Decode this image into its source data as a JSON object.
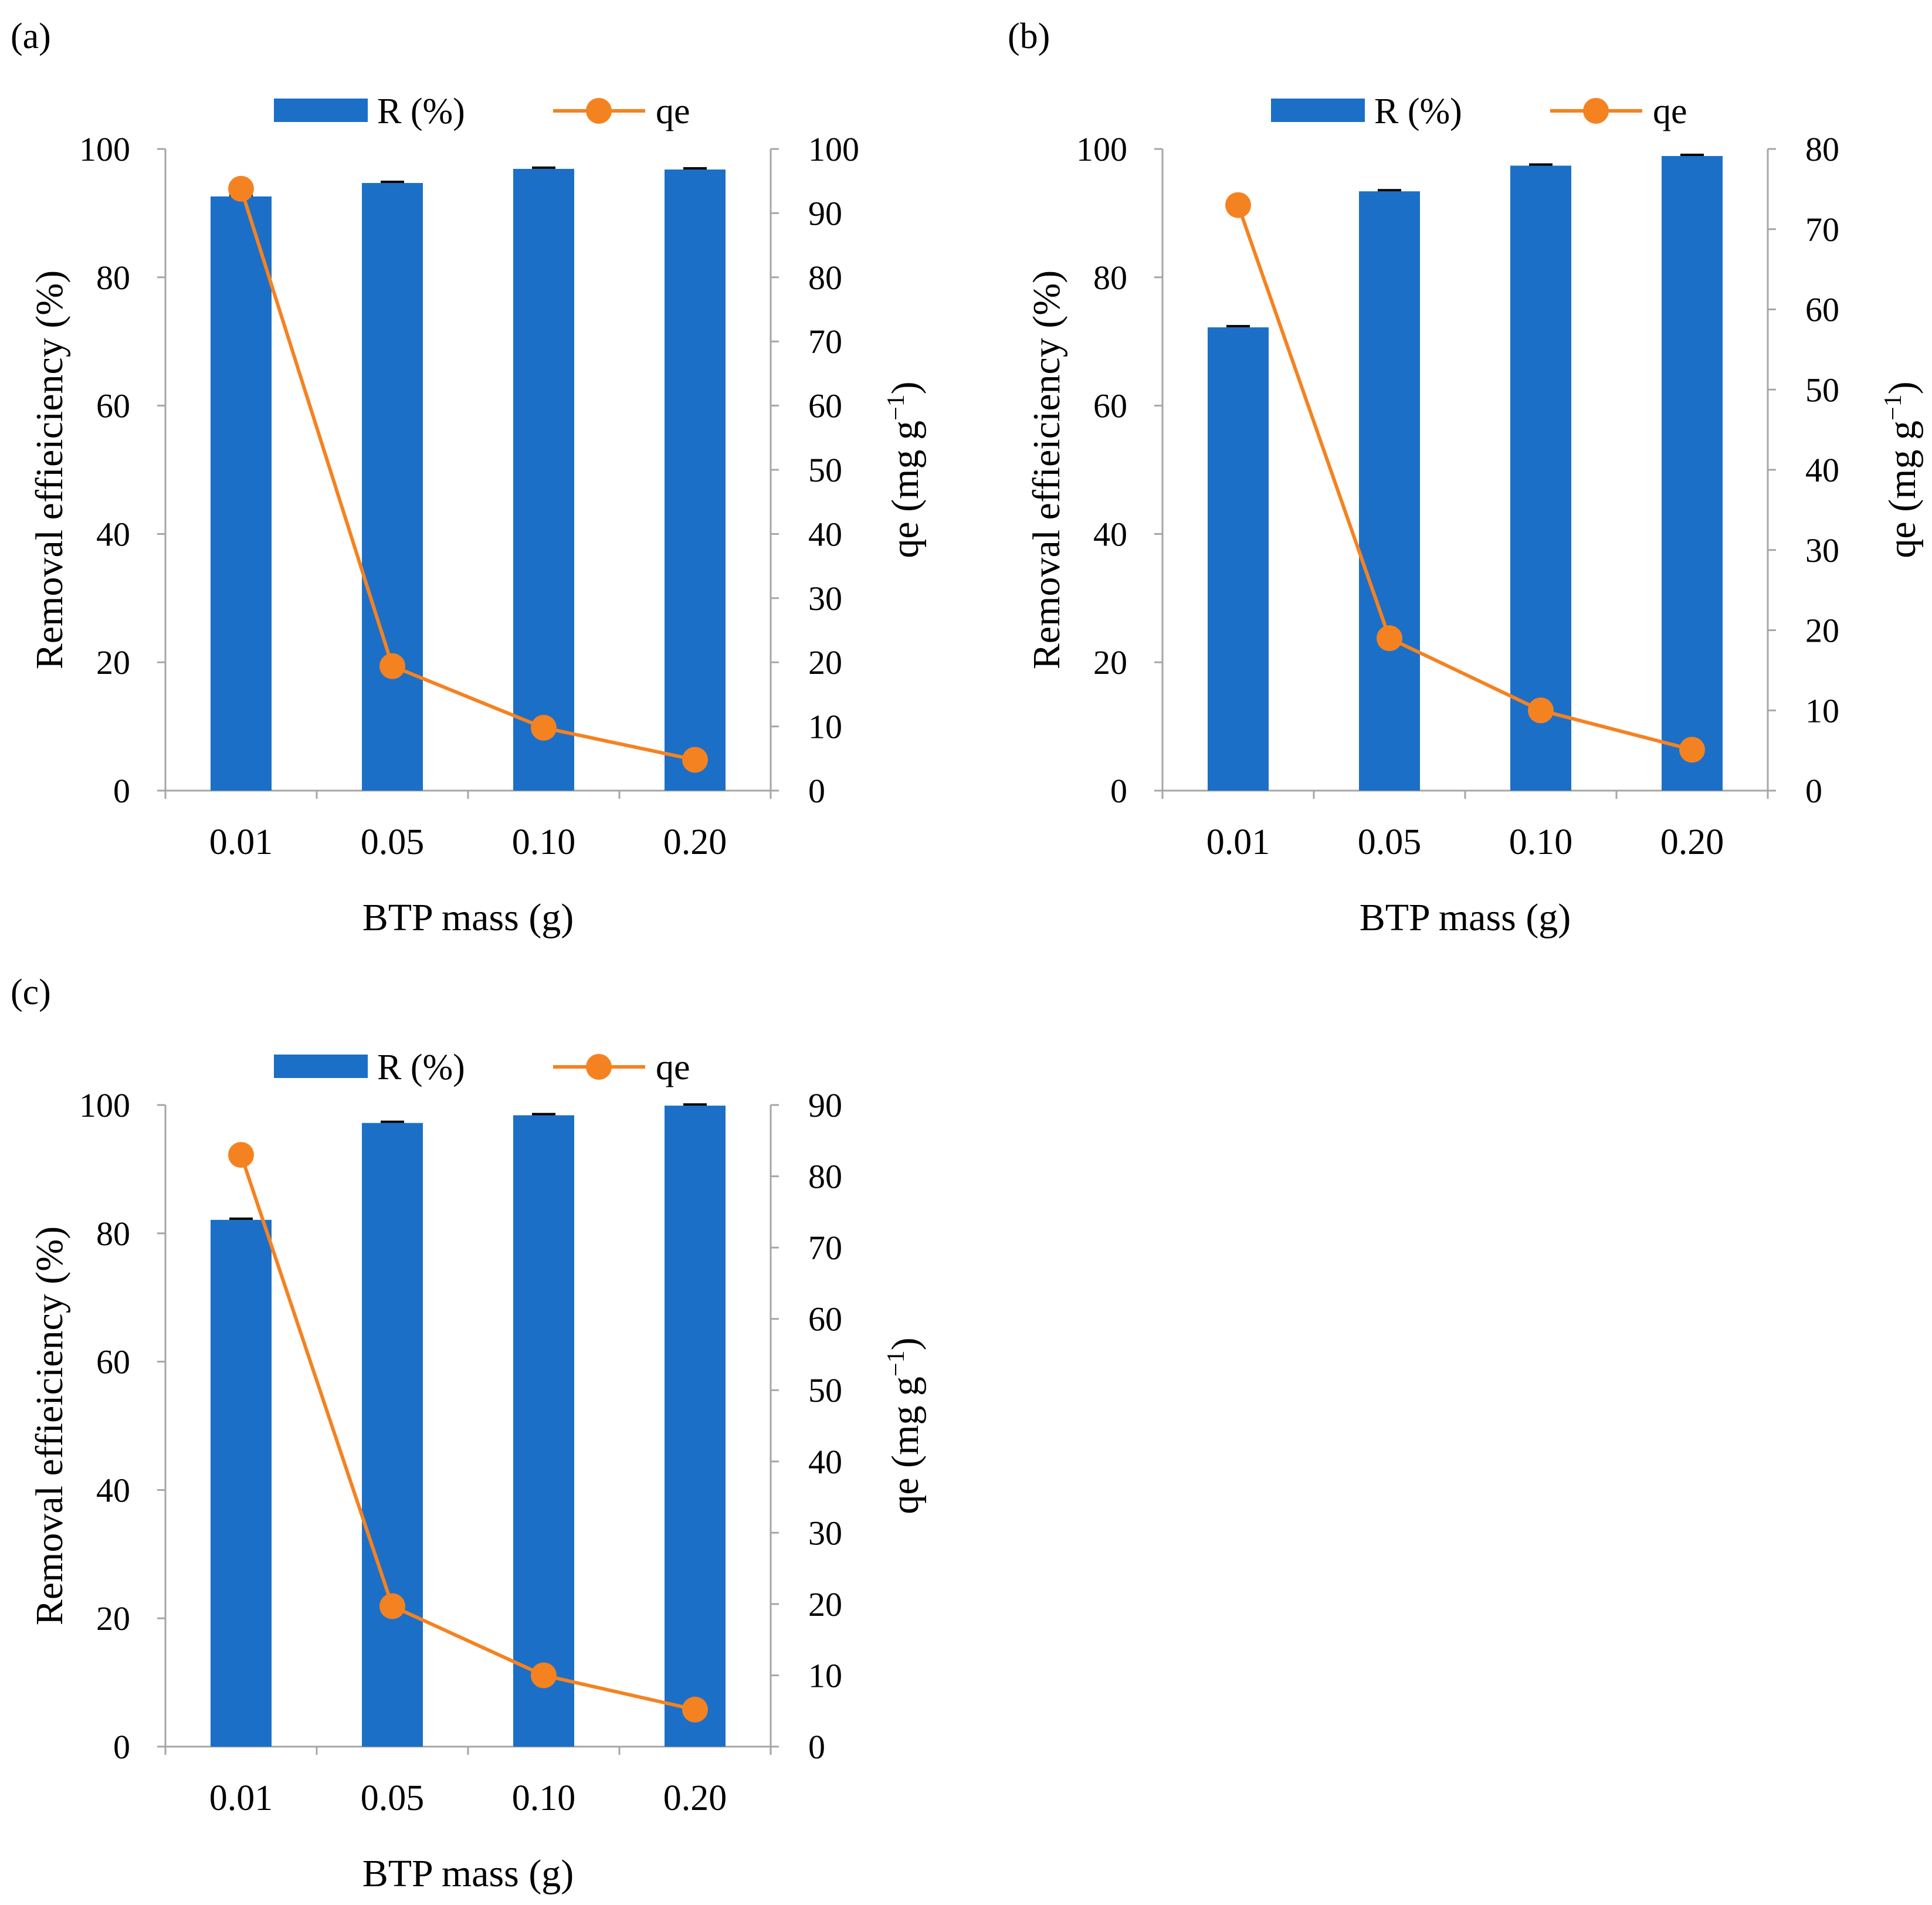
{
  "colors": {
    "bar": "#1C6FC6",
    "line": "#F58220",
    "axis": "#a6a6a6",
    "error": "#000000"
  },
  "chart_data": [
    {
      "type": "bar",
      "panel_label": "(a)",
      "categories": [
        "0.01",
        "0.05",
        "0.10",
        "0.20"
      ],
      "xlabel": "BTP mass (g)",
      "ylabel": "Removal effieiciency (%)",
      "y2label_main": "qe (mg g",
      "y2label_sup": "−1",
      "y2label_end": ")",
      "ylim": [
        0,
        100
      ],
      "yticks": [
        0,
        20,
        40,
        60,
        80,
        100
      ],
      "y2lim": [
        0,
        100
      ],
      "y2ticks": [
        0,
        10,
        20,
        30,
        40,
        50,
        60,
        70,
        80,
        90,
        100
      ],
      "legend": {
        "bar": "R (%)",
        "line": "qe"
      },
      "series": [
        {
          "name": "R (%)",
          "kind": "bar",
          "axis": "left",
          "values": [
            92.6,
            94.7,
            96.9,
            96.8
          ]
        },
        {
          "name": "qe",
          "kind": "line",
          "axis": "right",
          "values": [
            93.8,
            19.4,
            9.8,
            4.8
          ]
        }
      ]
    },
    {
      "type": "bar",
      "panel_label": "(b)",
      "categories": [
        "0.01",
        "0.05",
        "0.10",
        "0.20"
      ],
      "xlabel": "BTP mass (g)",
      "ylabel": "Removal effieiciency (%)",
      "y2label_main": "qe (mg g",
      "y2label_sup": "−1",
      "y2label_end": ")",
      "ylim": [
        0,
        100
      ],
      "yticks": [
        0,
        20,
        40,
        60,
        80,
        100
      ],
      "y2lim": [
        0,
        80
      ],
      "y2ticks": [
        0,
        10,
        20,
        30,
        40,
        50,
        60,
        70,
        80
      ],
      "legend": {
        "bar": "R (%)",
        "line": "qe"
      },
      "series": [
        {
          "name": "R (%)",
          "kind": "bar",
          "axis": "left",
          "values": [
            72.2,
            93.4,
            97.4,
            98.9
          ]
        },
        {
          "name": "qe",
          "kind": "line",
          "axis": "right",
          "values": [
            73.0,
            19.0,
            10.0,
            5.1
          ]
        }
      ]
    },
    {
      "type": "bar",
      "panel_label": "(c)",
      "categories": [
        "0.01",
        "0.05",
        "0.10",
        "0.20"
      ],
      "xlabel": "BTP mass (g)",
      "ylabel": "Removal effieiciency (%)",
      "y2label_main": "qe (mg g",
      "y2label_sup": "−1",
      "y2label_end": ")",
      "ylim": [
        0,
        100
      ],
      "yticks": [
        0,
        20,
        40,
        60,
        80,
        100
      ],
      "y2lim": [
        0,
        90
      ],
      "y2ticks": [
        0,
        10,
        20,
        30,
        40,
        50,
        60,
        70,
        80,
        90
      ],
      "legend": {
        "bar": "R (%)",
        "line": "qe"
      },
      "series": [
        {
          "name": "R (%)",
          "kind": "bar",
          "axis": "left",
          "values": [
            82.1,
            97.2,
            98.4,
            99.9
          ]
        },
        {
          "name": "qe",
          "kind": "line",
          "axis": "right",
          "values": [
            83.0,
            19.7,
            10.0,
            5.2
          ]
        }
      ]
    }
  ]
}
